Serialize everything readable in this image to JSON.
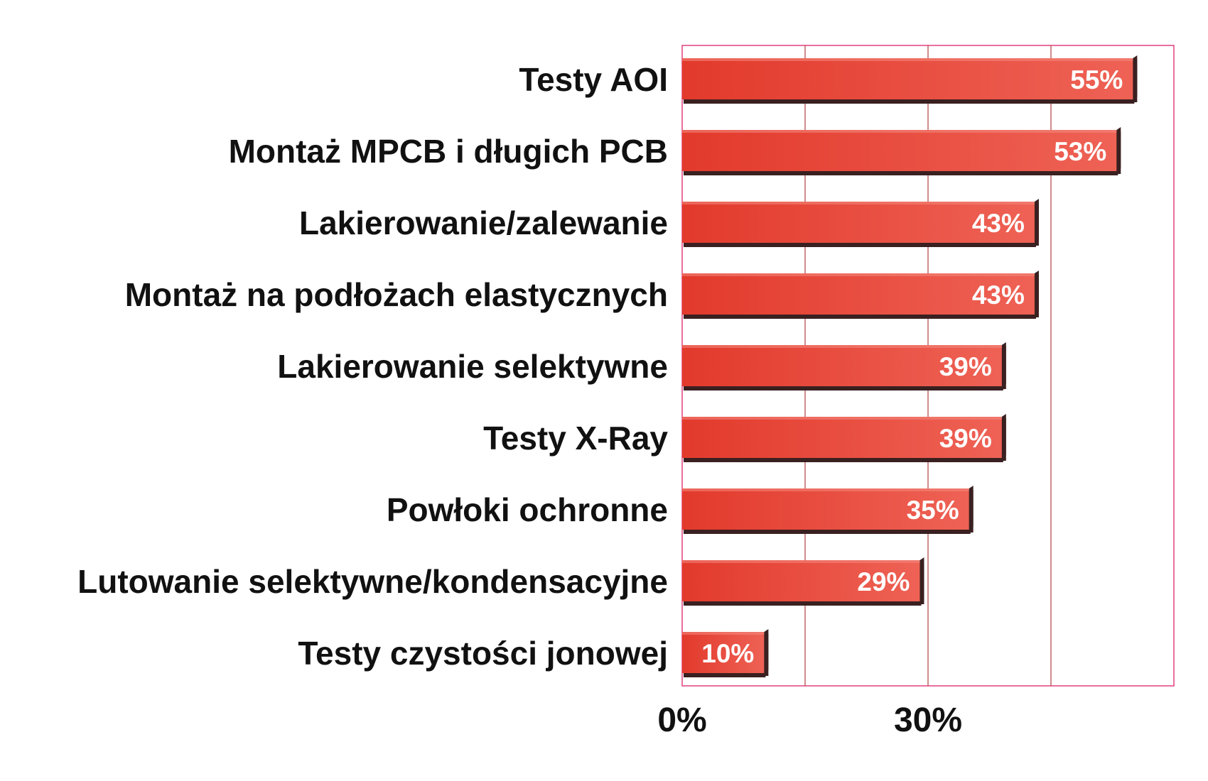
{
  "chart_data": {
    "type": "bar",
    "orientation": "horizontal",
    "categories": [
      "Testy AOI",
      "Montaż MPCB i długich PCB",
      "Lakierowanie/zalewanie",
      "Montaż na podłożach elastycznych",
      "Lakierowanie selektywne",
      "Testy X-Ray",
      "Powłoki ochronne",
      "Lutowanie selektywne/kondensacyjne",
      "Testy czystości jonowej"
    ],
    "values": [
      55,
      53,
      43,
      43,
      39,
      39,
      35,
      29,
      10
    ],
    "value_labels": [
      "55%",
      "53%",
      "43%",
      "43%",
      "39%",
      "39%",
      "35%",
      "29%",
      "10%"
    ],
    "xlim": [
      0,
      60
    ],
    "xticks": [
      0,
      15,
      30,
      45,
      60
    ],
    "xtick_labels": [
      {
        "value": 0,
        "label": "0%"
      },
      {
        "value": 30,
        "label": "30%"
      }
    ],
    "grid": true,
    "legend": "none",
    "bar_color": "#e23a2c",
    "bar_highlight_color": "#ee6255",
    "bar_shadow_color": "#3a2020",
    "grid_color": "#b04040",
    "frame_color": "#e04080"
  }
}
